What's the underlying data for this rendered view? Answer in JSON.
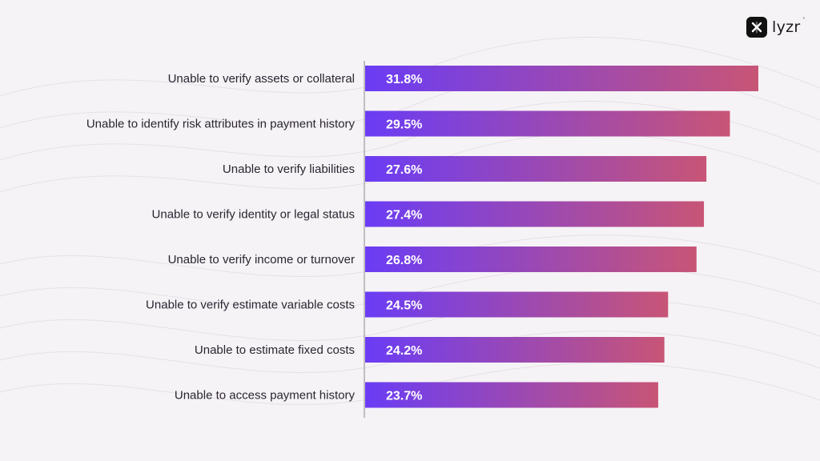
{
  "brand": {
    "name": "lyzr",
    "trademark": "°"
  },
  "colors": {
    "background": "#f6f3f6",
    "bar_start": "#6a3cf5",
    "bar_end": "#c85576",
    "axis": "#8a8a8a"
  },
  "chart_data": {
    "type": "bar",
    "orientation": "horizontal",
    "title": "",
    "xlabel": "",
    "ylabel": "",
    "categories": [
      "Unable to verify assets or collateral",
      "Unable to identify risk attributes in payment history",
      "Unable to verify liabilities",
      "Unable to verify identity or legal status",
      "Unable to verify income or turnover",
      "Unable to verify estimate variable costs",
      "Unable to estimate fixed costs",
      "Unable to access payment history"
    ],
    "values": [
      31.8,
      29.5,
      27.6,
      27.4,
      26.8,
      24.5,
      24.2,
      23.7
    ],
    "value_labels": [
      "31.8%",
      "29.5%",
      "27.6%",
      "27.4%",
      "26.8%",
      "24.5%",
      "24.2%",
      "23.7%"
    ],
    "xlim": [
      0,
      31.8
    ],
    "grid": false,
    "legend": "none"
  }
}
